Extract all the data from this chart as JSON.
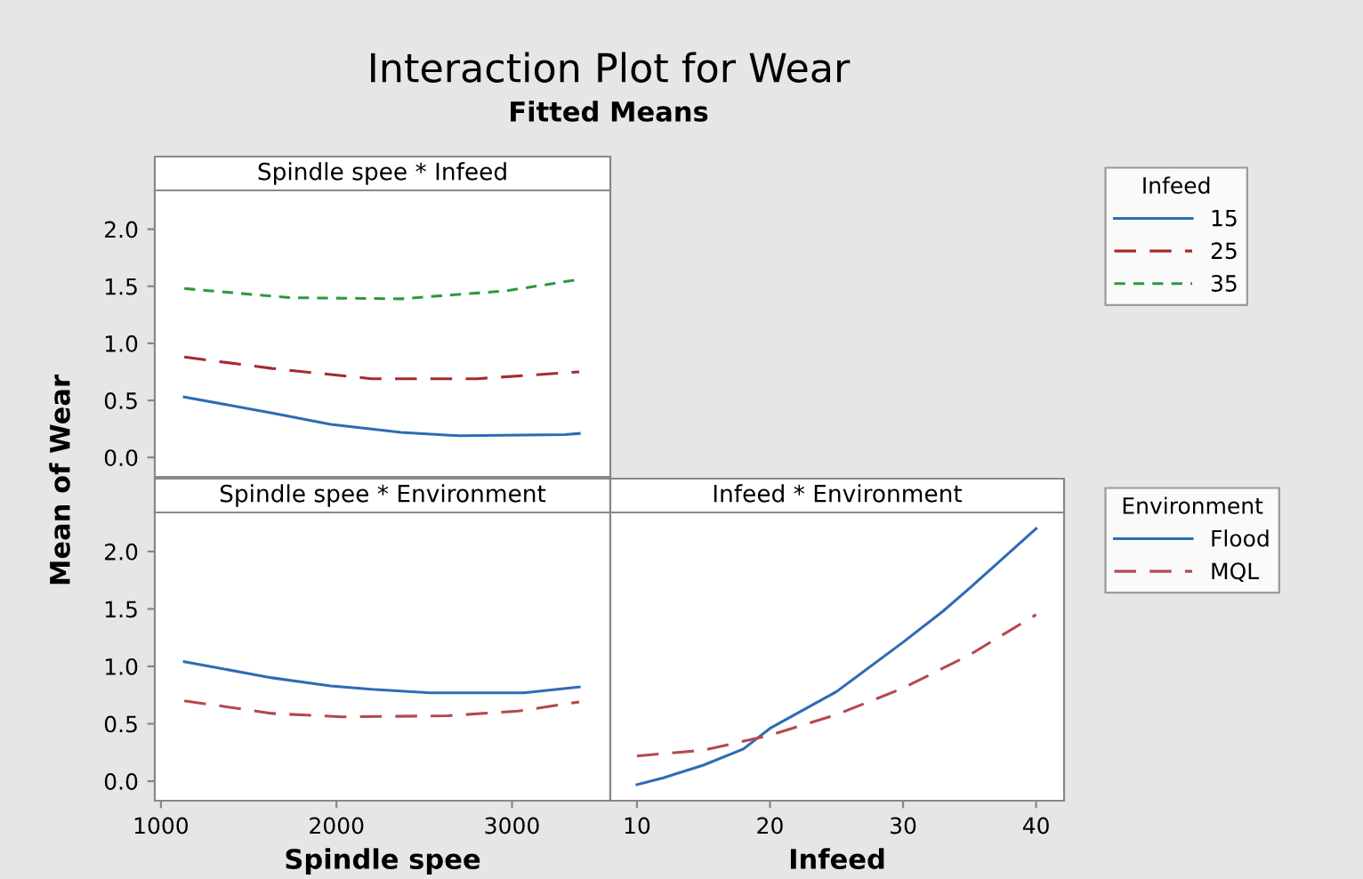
{
  "chart_data": [
    {
      "type": "line",
      "title": "Spindle spee * Infeed",
      "ylabel": "Mean of Wear",
      "annotations": [
        "Interaction Plot for Wear",
        "Fitted Means"
      ],
      "legend_title": "Infeed",
      "legend": "right",
      "tick_labels": "y",
      "grid": false,
      "marker": "none",
      "xlim": [
        965,
        3560
      ],
      "xticks": [
        1000,
        2000,
        3000
      ],
      "ylim": [
        -0.17,
        2.34
      ],
      "yticks": [
        {
          "value": 0,
          "label": "0.0"
        },
        {
          "value": 0.5,
          "label": "0.5"
        },
        {
          "value": 1,
          "label": "1.0"
        },
        {
          "value": 1.5,
          "label": "1.5"
        },
        {
          "value": 2,
          "label": "2.0"
        }
      ],
      "series": [
        {
          "name": "15",
          "color": "#2f6bb3",
          "line_style": "solid",
          "x": [
            1133,
            1633,
            1967,
            2367,
            2700,
            3300,
            3383
          ],
          "values": [
            0.53,
            0.39,
            0.29,
            0.22,
            0.19,
            0.2,
            0.21
          ]
        },
        {
          "name": "25",
          "color": "#a62a2e",
          "line_style": "dashed",
          "x": [
            1133,
            1633,
            2200,
            2800,
            3383
          ],
          "values": [
            0.88,
            0.78,
            0.69,
            0.69,
            0.75
          ]
        },
        {
          "name": "35",
          "color": "#2a9a3e",
          "line_style": "dotted",
          "x": [
            1133,
            1733,
            2367,
            2967,
            3383
          ],
          "values": [
            1.48,
            1.4,
            1.39,
            1.46,
            1.56
          ]
        }
      ]
    },
    {
      "type": "line",
      "title": "Spindle spee * Environment",
      "xlabel": "Spindle spee",
      "grid": false,
      "marker": "none",
      "legend": false,
      "xlim": [
        965,
        3560
      ],
      "xticks": [
        1000,
        2000,
        3000
      ],
      "ylim": [
        -0.17,
        2.34
      ],
      "yticks": [
        {
          "value": 0,
          "label": "0.0"
        },
        {
          "value": 0.5,
          "label": "0.5"
        },
        {
          "value": 1,
          "label": "1.0"
        },
        {
          "value": 1.5,
          "label": "1.5"
        },
        {
          "value": 2,
          "label": "2.0"
        }
      ],
      "series": [
        {
          "color": "#2f6bb3",
          "line_style": "solid",
          "x": [
            1133,
            1633,
            1967,
            2200,
            2533,
            3067,
            3383
          ],
          "values": [
            1.04,
            0.9,
            0.83,
            0.8,
            0.77,
            0.77,
            0.82
          ]
        },
        {
          "color": "#b5484c",
          "line_style": "dashed",
          "x": [
            1133,
            1633,
            2033,
            2633,
            3033,
            3383
          ],
          "values": [
            0.7,
            0.59,
            0.56,
            0.57,
            0.61,
            0.69
          ]
        }
      ]
    },
    {
      "type": "line",
      "title": "Infeed * Environment",
      "xlabel": "Infeed",
      "legend_title": "Environment",
      "legend": "right",
      "tick_labels": "x",
      "grid": false,
      "marker": "none",
      "xlim": [
        8,
        42.1
      ],
      "xticks": [
        10,
        20,
        30,
        40
      ],
      "ylim": [
        -0.17,
        2.34
      ],
      "series": [
        {
          "name": "Flood",
          "color": "#2f6bb3",
          "line_style": "solid",
          "x": [
            10,
            12,
            15,
            18,
            20,
            25,
            30,
            33,
            35,
            40
          ],
          "values": [
            -0.03,
            0.03,
            0.14,
            0.28,
            0.46,
            0.78,
            1.21,
            1.48,
            1.68,
            2.2
          ]
        },
        {
          "name": "MQL",
          "color": "#b5484c",
          "line_style": "dashed",
          "x": [
            10,
            15,
            20,
            25,
            30,
            35,
            40
          ],
          "values": [
            0.22,
            0.27,
            0.4,
            0.58,
            0.81,
            1.1,
            1.45
          ]
        }
      ]
    }
  ]
}
